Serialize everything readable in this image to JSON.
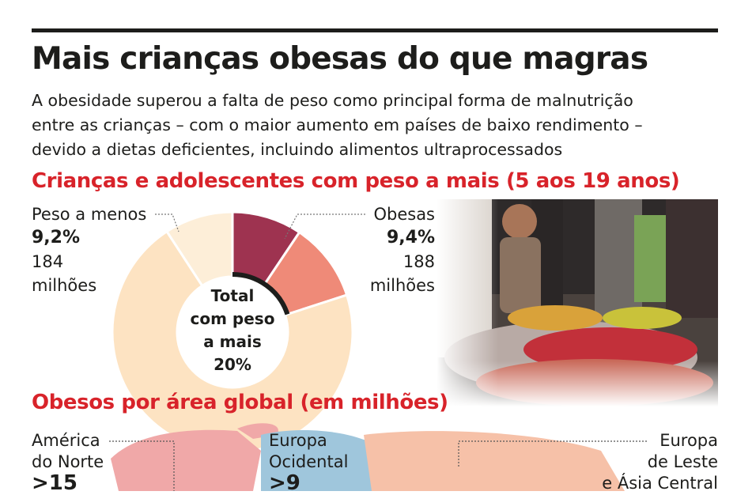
{
  "header": {
    "title": "Mais crianças obesas do que magras",
    "subtitle_lines": [
      "A obesidade superou a falta de peso como principal forma de malnutrição",
      "entre as crianças – com o maior aumento em países de baixo rendimento –",
      "devido a dietas deficientes, incluindo alimentos ultraprocessados"
    ]
  },
  "chart_data": [
    {
      "type": "pie",
      "title": "Crianças e adolescentes com peso a mais (5 aos 19 anos)",
      "center_label": [
        "Total",
        "com peso",
        "a mais",
        "20%"
      ],
      "labels": {
        "under": {
          "name": "Peso a menos",
          "pct": "9,2%",
          "count_lines": [
            "184",
            "milhões"
          ]
        },
        "obese": {
          "name": "Obesas",
          "pct": "9,4%",
          "count_lines": [
            "188",
            "milhões"
          ]
        }
      },
      "segments": [
        {
          "key": "obese",
          "value": 9.4,
          "color": "#9e3350"
        },
        {
          "key": "overweight_other",
          "value": 10.6,
          "color": "#ef8a78"
        },
        {
          "key": "healthy",
          "value": 70.8,
          "color": "#fde3c2"
        },
        {
          "key": "under",
          "value": 9.2,
          "color": "#fdeed8"
        }
      ]
    },
    {
      "type": "map",
      "title": "Obesos por área global (em milhões)",
      "regions": [
        {
          "name_lines": [
            "América",
            "do Norte"
          ],
          "value": ">15",
          "color": "#f0a8a8"
        },
        {
          "name_lines": [
            "Europa",
            "Ocidental"
          ],
          "value": ">9",
          "color": "#9fc6dc"
        },
        {
          "name_lines": [
            "Europa",
            "de Leste",
            "e Ásia Central"
          ],
          "value": "",
          "color": "#f6c1a8"
        }
      ]
    }
  ],
  "photo": {
    "icon": "market-children-photo"
  }
}
